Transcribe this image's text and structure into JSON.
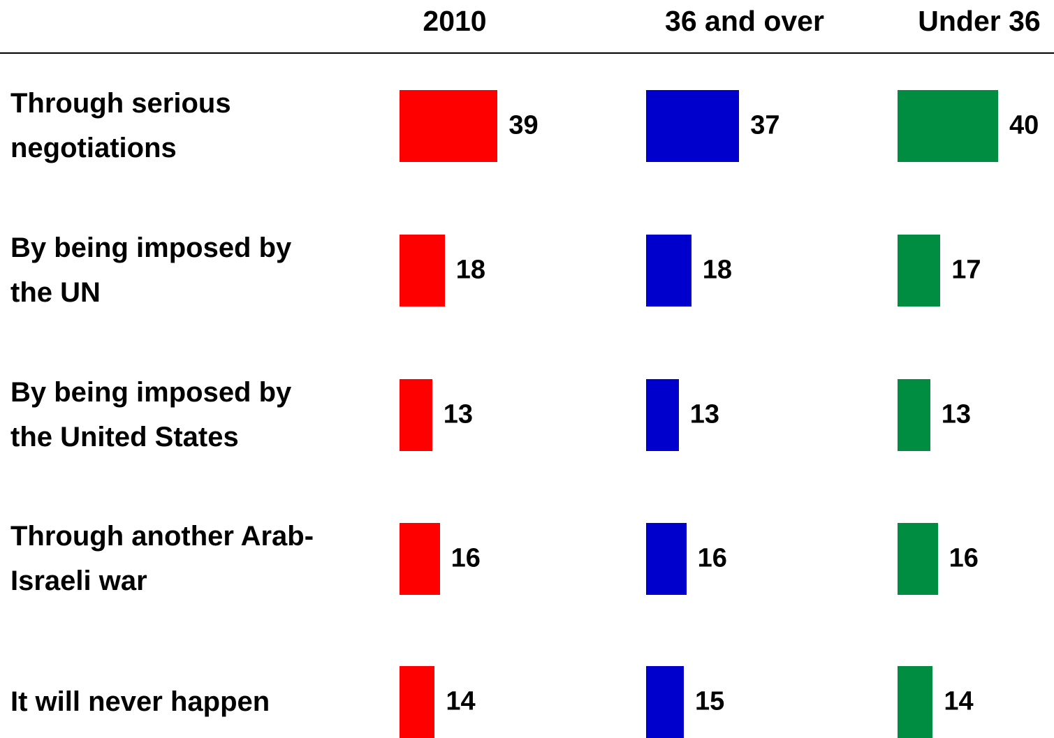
{
  "chart_data": {
    "type": "bar",
    "orientation": "horizontal",
    "categories": [
      "Through serious negotiations",
      "By being imposed by the UN",
      "By being imposed by the United States",
      "Through another Arab-Israeli war",
      "It will never happen"
    ],
    "series": [
      {
        "name": "2010",
        "color": "#ff0000",
        "values": [
          39,
          18,
          13,
          16,
          14
        ]
      },
      {
        "name": "36 and over",
        "color": "#0000cc",
        "values": [
          37,
          18,
          13,
          16,
          15
        ]
      },
      {
        "name": "Under 36",
        "color": "#008c41",
        "values": [
          40,
          17,
          13,
          16,
          14
        ]
      }
    ]
  }
}
